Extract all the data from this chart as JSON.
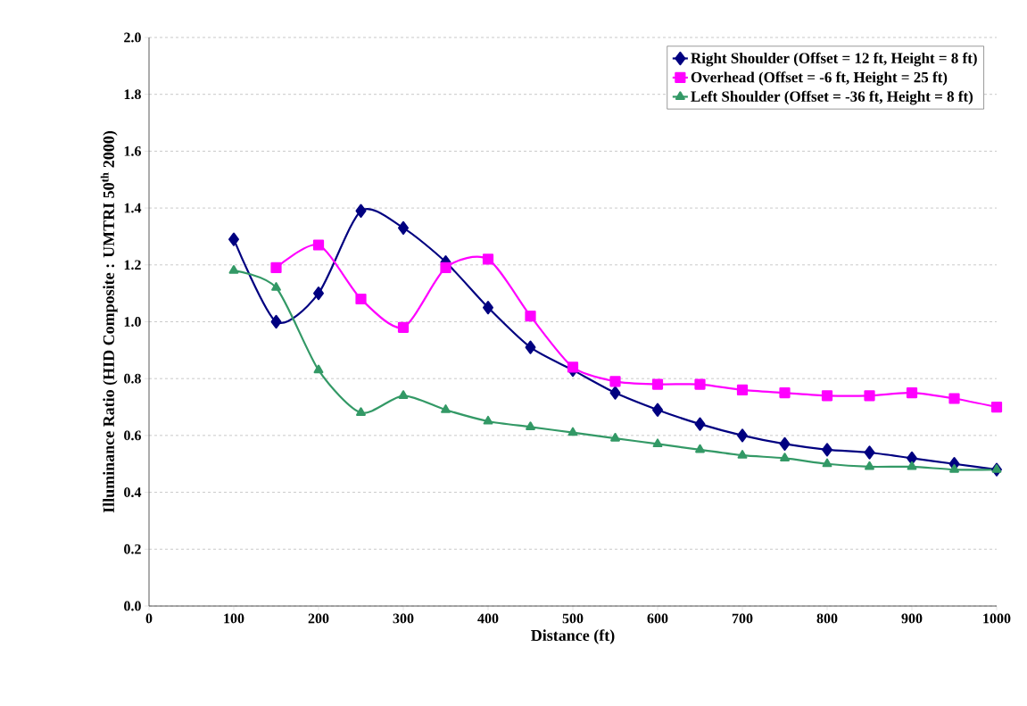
{
  "chart_data": {
    "type": "line",
    "xlabel": "Distance (ft)",
    "ylabel": "Illuminance Ratio (HID Composite : UMTRI 50$^{th}$ 2000)",
    "x": [
      100,
      150,
      200,
      250,
      300,
      350,
      400,
      450,
      500,
      550,
      600,
      650,
      700,
      750,
      800,
      850,
      900,
      950,
      1000
    ],
    "series": [
      {
        "name": "Right Shoulder (Offset = 12 ft, Height = 8 ft)",
        "color": "#000080",
        "marker": "diamond",
        "values": [
          1.29,
          1.0,
          1.1,
          1.39,
          1.33,
          1.21,
          1.05,
          0.91,
          0.83,
          0.75,
          0.69,
          0.64,
          0.6,
          0.57,
          0.55,
          0.54,
          0.52,
          0.5,
          0.48
        ]
      },
      {
        "name": "Overhead  (Offset = -6 ft, Height = 25 ft)",
        "color": "#ff00ff",
        "marker": "square",
        "x": [
          150,
          200,
          250,
          300,
          350,
          400,
          450,
          500,
          550,
          600,
          650,
          700,
          750,
          800,
          850,
          900,
          950,
          1000
        ],
        "values": [
          1.19,
          1.27,
          1.08,
          0.98,
          1.19,
          1.22,
          1.02,
          0.84,
          0.79,
          0.78,
          0.78,
          0.76,
          0.75,
          0.74,
          0.74,
          0.75,
          0.73,
          0.7
        ]
      },
      {
        "name": "Left Shoulder (Offset = -36 ft, Height = 8 ft)",
        "color": "#339966",
        "marker": "triangle",
        "values": [
          1.18,
          1.12,
          0.83,
          0.68,
          0.74,
          0.69,
          0.65,
          0.63,
          0.61,
          0.59,
          0.57,
          0.55,
          0.53,
          0.52,
          0.5,
          0.49,
          0.49,
          0.48,
          0.48
        ]
      }
    ],
    "xlim": [
      0,
      1000
    ],
    "xticks": [
      0,
      100,
      200,
      300,
      400,
      500,
      600,
      700,
      800,
      900,
      1000
    ],
    "ylim": [
      0,
      2.0
    ],
    "yticks": [
      {
        "value": 0,
        "label": "0.0"
      },
      {
        "value": 0.2,
        "label": "0.2"
      },
      {
        "value": 0.4,
        "label": "0.4"
      },
      {
        "value": 0.6,
        "label": "0.6"
      },
      {
        "value": 0.8,
        "label": "0.8"
      },
      {
        "value": 1.0,
        "label": "1.0"
      },
      {
        "value": 1.2,
        "label": "1.2"
      },
      {
        "value": 1.4,
        "label": "1.4"
      },
      {
        "value": 1.6,
        "label": "1.6"
      },
      {
        "value": 1.8,
        "label": "1.8"
      },
      {
        "value": 2.0,
        "label": "2.0"
      }
    ],
    "grid": "y",
    "legend": "top right",
    "line_style": "solid"
  }
}
